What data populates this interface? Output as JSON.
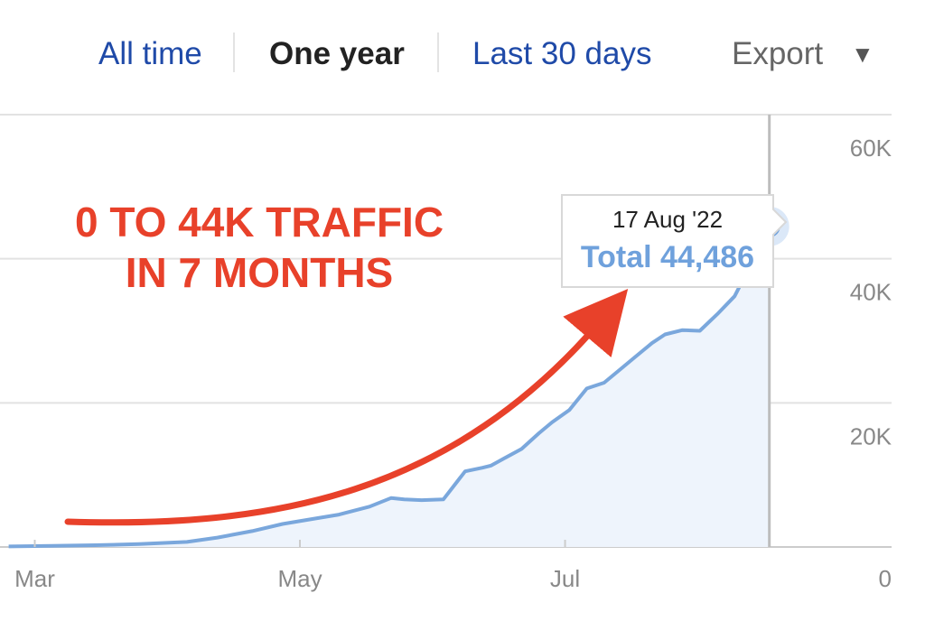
{
  "toolbar": {
    "tabs": [
      {
        "label": "All time",
        "active": false
      },
      {
        "label": "One year",
        "active": true
      },
      {
        "label": "Last 30 days",
        "active": false
      }
    ],
    "export_label": "Export",
    "export_icon": "caret-down-icon"
  },
  "colors": {
    "link": "#1f4aa8",
    "active_tab": "#222222",
    "line": "#7aa7dc",
    "area": "#eef4fc",
    "annotation": "#e8412a",
    "tooltip_total": "#6fa1dc",
    "grid": "#e2e2e2",
    "tick": "#888888"
  },
  "chart_data": {
    "type": "area",
    "y_axis": {
      "position": "right",
      "ticks": [
        0,
        20000,
        40000,
        60000
      ],
      "tick_labels": [
        "0",
        "20K",
        "40K",
        "60K"
      ],
      "range": [
        0,
        60000
      ]
    },
    "x_axis": {
      "tick_labels": [
        "Mar",
        "May",
        "Jul"
      ],
      "tick_dates": [
        "2022-03-01",
        "2022-05-01",
        "2022-07-01"
      ],
      "range": [
        "2022-02-21",
        "2022-08-26"
      ]
    },
    "grid": true,
    "series": [
      {
        "dates": [
          "2022-02-23",
          "2022-03-05",
          "2022-03-15",
          "2022-03-25",
          "2022-04-05",
          "2022-04-12",
          "2022-04-20",
          "2022-04-27",
          "2022-05-04",
          "2022-05-10",
          "2022-05-17",
          "2022-05-22",
          "2022-05-25",
          "2022-05-29",
          "2022-06-03",
          "2022-06-08",
          "2022-06-12",
          "2022-06-14",
          "2022-06-17",
          "2022-06-21",
          "2022-06-25",
          "2022-06-28",
          "2022-07-02",
          "2022-07-06",
          "2022-07-10",
          "2022-07-14",
          "2022-07-17",
          "2022-07-21",
          "2022-07-24",
          "2022-07-28",
          "2022-08-01",
          "2022-08-05",
          "2022-08-09",
          "2022-08-12",
          "2022-08-14",
          "2022-08-17"
        ],
        "values": [
          80,
          150,
          250,
          400,
          700,
          1300,
          2200,
          3200,
          3900,
          4500,
          5600,
          6800,
          6600,
          6500,
          6600,
          10500,
          11000,
          11300,
          12300,
          13600,
          15800,
          17300,
          19000,
          22000,
          22800,
          24800,
          26300,
          28300,
          29500,
          30100,
          30000,
          32300,
          34800,
          38300,
          42800,
          44486
        ]
      }
    ],
    "highlight": {
      "date": "2022-08-17",
      "value": 44486
    }
  },
  "tooltip": {
    "date_label": "17 Aug '22",
    "total_label": "Total 44,486"
  },
  "annotation": {
    "line1": "0 TO 44K TRAFFIC",
    "line2": "IN 7 MONTHS"
  }
}
